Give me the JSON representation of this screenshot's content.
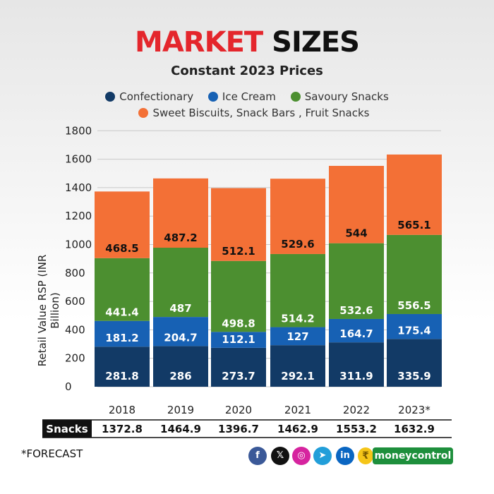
{
  "title": {
    "part1": "MARKET",
    "part2": "SIZES"
  },
  "subtitle": "Constant 2023 Prices",
  "footnote": "*FORECAST",
  "social_icons": [
    {
      "name": "facebook-icon",
      "glyph": "f",
      "color": "#3b5998"
    },
    {
      "name": "x-icon",
      "glyph": "𝕏",
      "color": "#111111"
    },
    {
      "name": "instagram-icon",
      "glyph": "◎",
      "color": "#d6249f"
    },
    {
      "name": "telegram-icon",
      "glyph": "➤",
      "color": "#229ed9"
    },
    {
      "name": "linkedin-icon",
      "glyph": "in",
      "color": "#0a66c2"
    }
  ],
  "brand": {
    "coin_glyph": "₹",
    "name": "moneycontrol",
    "color": "#1e8f3c"
  },
  "background": {
    "top": "#e6e6e6",
    "bottom": "#ffffff"
  },
  "chart_data": {
    "type": "bar",
    "stacked": true,
    "categories": [
      "2018",
      "2019",
      "2020",
      "2021",
      "2022",
      "2023*"
    ],
    "series": [
      {
        "name": "Confectionary",
        "color": "#123a66",
        "values": [
          281.8,
          286,
          273.7,
          292.1,
          311.9,
          335.9
        ]
      },
      {
        "name": "Ice Cream",
        "color": "#1761b4",
        "values": [
          181.2,
          204.7,
          112.1,
          127,
          164.7,
          175.4
        ]
      },
      {
        "name": "Savoury Snacks",
        "color": "#4c8f30",
        "values": [
          441.4,
          487,
          498.8,
          514.2,
          532.6,
          556.5
        ]
      },
      {
        "name": "Sweet Biscuits, Snack Bars , Fruit Snacks",
        "color": "#f37036",
        "values": [
          468.5,
          487.2,
          512.1,
          529.6,
          544,
          565.1
        ]
      }
    ],
    "ylabel": "Retail Value RSP (INR Billion)",
    "xlabel": "",
    "ylim": [
      0,
      1800
    ],
    "yticks": [
      0,
      200,
      400,
      600,
      800,
      1000,
      1200,
      1400,
      1600,
      1800
    ],
    "grid": true,
    "legend": "top",
    "totals_row": {
      "label": "Snacks",
      "values": [
        "1372.8",
        "1464.9",
        "1396.7",
        "1462.9",
        "1553.2",
        "1632.9"
      ]
    }
  }
}
